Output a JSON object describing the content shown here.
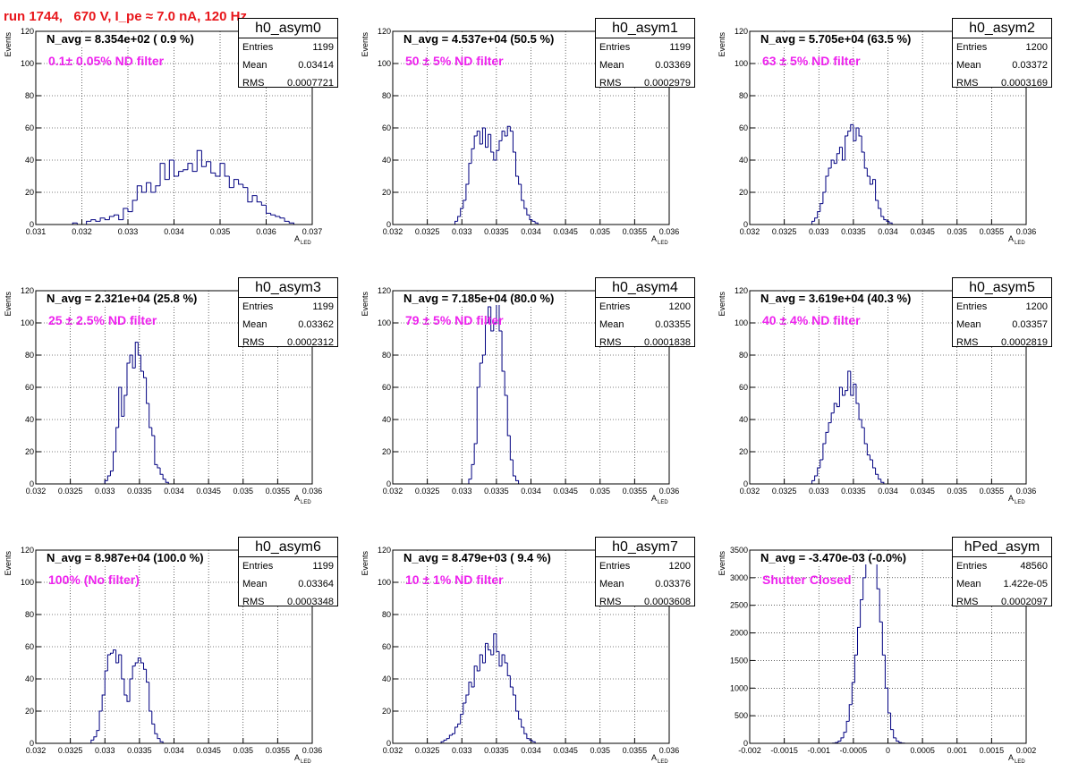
{
  "title": "run 1744,   670 V, I_pe ≈ 7.0 nA, 120 Hz",
  "colors": {
    "title": "#e8161b",
    "note": "#ee22ee",
    "histogram": "#000080",
    "grid": "#000000"
  },
  "chart_data": [
    {
      "type": "histogram",
      "name": "h0_asym0",
      "navg": "N_avg = 8.354e+02 ( 0.9 %)",
      "note": "0.1± 0.05% ND filter",
      "stats": {
        "entries_label": "Entries",
        "entries": "1199",
        "mean_label": "Mean",
        "mean": "0.03414",
        "rms_label": "RMS",
        "rms": "0.0007721"
      },
      "xlabel": "A",
      "xlabel_sub": "LED",
      "ylabel": "Events",
      "xlim": [
        0.031,
        0.037
      ],
      "ylim": [
        0,
        120
      ],
      "xticks": [
        "0.031",
        "0.032",
        "0.033",
        "0.034",
        "0.035",
        "0.036",
        "0.037"
      ],
      "yticks": [
        "0",
        "20",
        "40",
        "60",
        "80",
        "100",
        "120"
      ],
      "grid": true,
      "bin_start": 0.0318,
      "bin_width": 0.0001,
      "counts": [
        1,
        0,
        0,
        2,
        3,
        2,
        4,
        3,
        5,
        6,
        3,
        10,
        8,
        15,
        24,
        20,
        26,
        20,
        24,
        38,
        28,
        40,
        30,
        33,
        34,
        38,
        33,
        46,
        36,
        39,
        32,
        30,
        38,
        30,
        23,
        28,
        25,
        23,
        14,
        18,
        14,
        12,
        7,
        6,
        5,
        4,
        2,
        1
      ]
    },
    {
      "type": "histogram",
      "name": "h0_asym1",
      "navg": "N_avg = 4.537e+04 (50.5 %)",
      "note": "50 ± 5% ND filter",
      "stats": {
        "entries_label": "Entries",
        "entries": "1199",
        "mean_label": "Mean",
        "mean": "0.03369",
        "rms_label": "RMS",
        "rms": "0.0002979"
      },
      "xlabel": "A",
      "xlabel_sub": "LED",
      "ylabel": "Events",
      "xlim": [
        0.032,
        0.036
      ],
      "ylim": [
        0,
        120
      ],
      "xticks": [
        "0.032",
        "0.0325",
        "0.033",
        "0.0335",
        "0.034",
        "0.0345",
        "0.035",
        "0.0355",
        "0.036"
      ],
      "yticks": [
        "0",
        "20",
        "40",
        "60",
        "80",
        "100",
        "120"
      ],
      "grid": true,
      "bin_start": 0.0329,
      "bin_width": 4e-05,
      "counts": [
        2,
        5,
        10,
        15,
        25,
        38,
        47,
        55,
        58,
        50,
        60,
        48,
        56,
        45,
        40,
        46,
        52,
        58,
        55,
        61,
        58,
        45,
        30,
        25,
        15,
        10,
        6,
        3,
        2,
        1
      ]
    },
    {
      "type": "histogram",
      "name": "h0_asym2",
      "navg": "N_avg = 5.705e+04 (63.5 %)",
      "note": "63 ± 5% ND filter",
      "stats": {
        "entries_label": "Entries",
        "entries": "1200",
        "mean_label": "Mean",
        "mean": "0.03372",
        "rms_label": "RMS",
        "rms": "0.0003169"
      },
      "xlabel": "A",
      "xlabel_sub": "LED",
      "ylabel": "Events",
      "xlim": [
        0.032,
        0.036
      ],
      "ylim": [
        0,
        120
      ],
      "xticks": [
        "0.032",
        "0.0325",
        "0.033",
        "0.0335",
        "0.034",
        "0.0345",
        "0.035",
        "0.0355",
        "0.036"
      ],
      "yticks": [
        "0",
        "20",
        "40",
        "60",
        "80",
        "100",
        "120"
      ],
      "grid": true,
      "bin_start": 0.0329,
      "bin_width": 4e-05,
      "counts": [
        2,
        4,
        8,
        13,
        20,
        30,
        35,
        40,
        38,
        44,
        48,
        40,
        55,
        58,
        62,
        52,
        60,
        55,
        45,
        35,
        30,
        25,
        28,
        15,
        10,
        5,
        3,
        2,
        1
      ]
    },
    {
      "type": "histogram",
      "name": "h0_asym3",
      "navg": "N_avg = 2.321e+04 (25.8 %)",
      "note": "25 ± 2.5% ND filter",
      "stats": {
        "entries_label": "Entries",
        "entries": "1199",
        "mean_label": "Mean",
        "mean": "0.03362",
        "rms_label": "RMS",
        "rms": "0.0002312"
      },
      "xlabel": "A",
      "xlabel_sub": "LED",
      "ylabel": "Events",
      "xlim": [
        0.032,
        0.036
      ],
      "ylim": [
        0,
        120
      ],
      "xticks": [
        "0.032",
        "0.0325",
        "0.033",
        "0.0335",
        "0.034",
        "0.0345",
        "0.035",
        "0.0355",
        "0.036"
      ],
      "yticks": [
        "0",
        "20",
        "40",
        "60",
        "80",
        "100",
        "120"
      ],
      "grid": true,
      "bin_start": 0.033,
      "bin_width": 4e-05,
      "counts": [
        2,
        5,
        8,
        20,
        35,
        60,
        42,
        55,
        75,
        80,
        72,
        88,
        80,
        70,
        66,
        50,
        35,
        30,
        12,
        10,
        6,
        3,
        1
      ]
    },
    {
      "type": "histogram",
      "name": "h0_asym4",
      "navg": "N_avg = 7.185e+04 (80.0 %)",
      "note": "79 ± 5% ND filter",
      "stats": {
        "entries_label": "Entries",
        "entries": "1200",
        "mean_label": "Mean",
        "mean": "0.03355",
        "rms_label": "RMS",
        "rms": "0.0001838"
      },
      "xlabel": "A",
      "xlabel_sub": "LED",
      "ylabel": "Events",
      "xlim": [
        0.032,
        0.036
      ],
      "ylim": [
        0,
        120
      ],
      "xticks": [
        "0.032",
        "0.0325",
        "0.033",
        "0.0335",
        "0.034",
        "0.0345",
        "0.035",
        "0.0355",
        "0.036"
      ],
      "yticks": [
        "0",
        "20",
        "40",
        "60",
        "80",
        "100",
        "120"
      ],
      "grid": true,
      "bin_start": 0.0331,
      "bin_width": 4e-05,
      "counts": [
        3,
        12,
        25,
        60,
        75,
        80,
        100,
        110,
        95,
        100,
        112,
        95,
        70,
        55,
        30,
        15,
        5,
        2
      ]
    },
    {
      "type": "histogram",
      "name": "h0_asym5",
      "navg": "N_avg = 3.619e+04 (40.3 %)",
      "note": "40 ± 4% ND filter",
      "stats": {
        "entries_label": "Entries",
        "entries": "1200",
        "mean_label": "Mean",
        "mean": "0.03357",
        "rms_label": "RMS",
        "rms": "0.0002819"
      },
      "xlabel": "A",
      "xlabel_sub": "LED",
      "ylabel": "Events",
      "xlim": [
        0.032,
        0.036
      ],
      "ylim": [
        0,
        120
      ],
      "xticks": [
        "0.032",
        "0.0325",
        "0.033",
        "0.0335",
        "0.034",
        "0.0345",
        "0.035",
        "0.0355",
        "0.036"
      ],
      "yticks": [
        "0",
        "20",
        "40",
        "60",
        "80",
        "100",
        "120"
      ],
      "grid": true,
      "bin_start": 0.0329,
      "bin_width": 4e-05,
      "counts": [
        2,
        5,
        10,
        15,
        25,
        32,
        38,
        44,
        50,
        48,
        60,
        55,
        58,
        70,
        55,
        62,
        50,
        40,
        35,
        25,
        18,
        15,
        10,
        6,
        3,
        1
      ]
    },
    {
      "type": "histogram",
      "name": "h0_asym6",
      "navg": "N_avg = 8.987e+04 (100.0 %)",
      "note": "100% (No filter)",
      "stats": {
        "entries_label": "Entries",
        "entries": "1199",
        "mean_label": "Mean",
        "mean": "0.03364",
        "rms_label": "RMS",
        "rms": "0.0003348"
      },
      "xlabel": "A",
      "xlabel_sub": "LED",
      "ylabel": "Events",
      "xlim": [
        0.032,
        0.036
      ],
      "ylim": [
        0,
        120
      ],
      "xticks": [
        "0.032",
        "0.0325",
        "0.033",
        "0.0335",
        "0.034",
        "0.0345",
        "0.035",
        "0.0355",
        "0.036"
      ],
      "yticks": [
        "0",
        "20",
        "40",
        "60",
        "80",
        "100",
        "120"
      ],
      "grid": true,
      "bin_start": 0.0328,
      "bin_width": 4e-05,
      "counts": [
        2,
        4,
        8,
        20,
        30,
        45,
        55,
        56,
        58,
        50,
        55,
        40,
        30,
        26,
        40,
        48,
        50,
        53,
        50,
        46,
        38,
        20,
        12,
        6,
        3,
        1
      ]
    },
    {
      "type": "histogram",
      "name": "h0_asym7",
      "navg": "N_avg = 8.479e+03 ( 9.4 %)",
      "note": "10 ± 1% ND filter",
      "stats": {
        "entries_label": "Entries",
        "entries": "1200",
        "mean_label": "Mean",
        "mean": "0.03376",
        "rms_label": "RMS",
        "rms": "0.0003608"
      },
      "xlabel": "A",
      "xlabel_sub": "LED",
      "ylabel": "Events",
      "xlim": [
        0.032,
        0.036
      ],
      "ylim": [
        0,
        120
      ],
      "xticks": [
        "0.032",
        "0.0325",
        "0.033",
        "0.0335",
        "0.034",
        "0.0345",
        "0.035",
        "0.0355",
        "0.036"
      ],
      "yticks": [
        "0",
        "20",
        "40",
        "60",
        "80",
        "100",
        "120"
      ],
      "grid": true,
      "bin_start": 0.0327,
      "bin_width": 4e-05,
      "counts": [
        1,
        2,
        3,
        5,
        6,
        10,
        12,
        18,
        25,
        30,
        38,
        35,
        48,
        45,
        55,
        50,
        62,
        58,
        55,
        68,
        57,
        48,
        55,
        50,
        42,
        35,
        30,
        20,
        15,
        10,
        6,
        3,
        2,
        1
      ]
    },
    {
      "type": "histogram",
      "name": "hPed_asym",
      "navg": "N_avg = -3.470e-03 (-0.0%)",
      "note": "Shutter Closed",
      "stats": {
        "entries_label": "Entries",
        "entries": "48560",
        "mean_label": "Mean",
        "mean": "1.422e-05",
        "rms_label": "RMS",
        "rms": "0.0002097"
      },
      "xlabel": "A",
      "xlabel_sub": "LED",
      "ylabel": "Events",
      "xlim": [
        -0.002,
        0.002
      ],
      "ylim": [
        0,
        3500
      ],
      "xticks": [
        "-0.002",
        "-0.0015",
        "-0.001",
        "-0.0005",
        "0",
        "0.0005",
        "0.001",
        "0.0015",
        "0.002"
      ],
      "yticks": [
        "0",
        "500",
        "1000",
        "1500",
        "2000",
        "2500",
        "3000",
        "3500"
      ],
      "grid": true,
      "bin_start": -0.0008,
      "bin_width": 4e-05,
      "counts": [
        5,
        15,
        40,
        100,
        200,
        400,
        700,
        1100,
        1600,
        2100,
        2600,
        3000,
        3300,
        3500,
        3450,
        3300,
        2800,
        2200,
        1600,
        1000,
        550,
        250,
        100,
        40,
        15,
        5
      ]
    }
  ]
}
